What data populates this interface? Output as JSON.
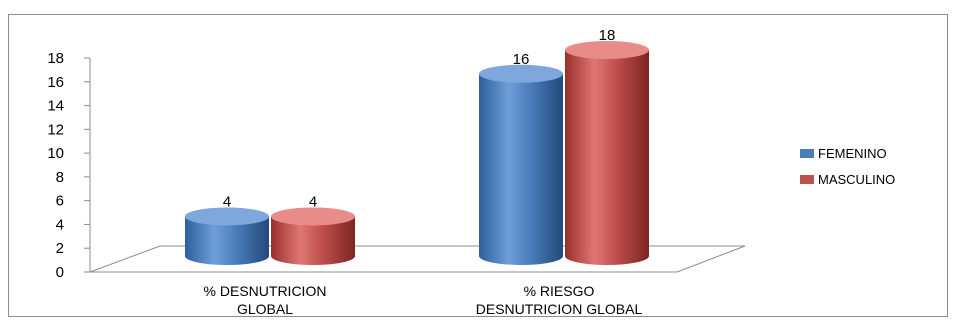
{
  "chart_data": {
    "type": "bar",
    "title": "",
    "xlabel": "",
    "ylabel": "",
    "ylim": [
      0,
      18
    ],
    "yticks": [
      0,
      2,
      4,
      6,
      8,
      10,
      12,
      14,
      16,
      18
    ],
    "grid": false,
    "legend_position": "right",
    "categories": [
      [
        "% DESNUTRICION",
        "GLOBAL"
      ],
      [
        "% RIESGO",
        "DESNUTRICION GLOBAL"
      ]
    ],
    "series": [
      {
        "name": "FEMENINO",
        "values": [
          4,
          16
        ],
        "color": "#4a7ebb"
      },
      {
        "name": "MASCULINO",
        "values": [
          4,
          18
        ],
        "color": "#c0504d"
      }
    ]
  }
}
